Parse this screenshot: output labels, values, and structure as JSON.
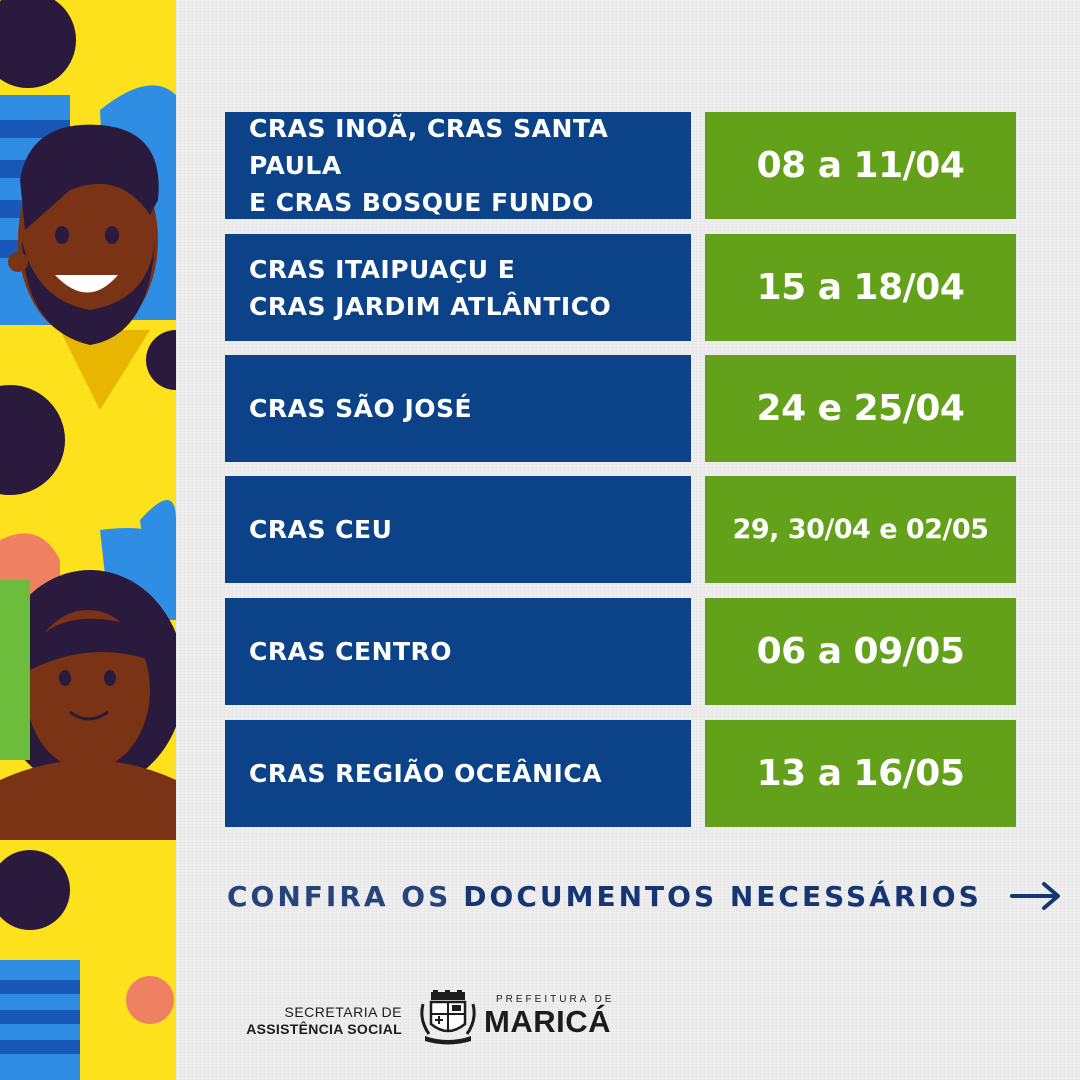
{
  "schedule": [
    {
      "place": "CRAS INOÃ, CRAS SANTA PAULA\nE CRAS BOSQUE FUNDO",
      "date": "08 a 11/04"
    },
    {
      "place": "CRAS ITAIPUAÇU E\nCRAS JARDIM ATLÂNTICO",
      "date": "15 a 18/04"
    },
    {
      "place": "CRAS SÃO JOSÉ",
      "date": "24 e 25/04"
    },
    {
      "place": "CRAS CEU",
      "date": "29, 30/04 e 02/05"
    },
    {
      "place": "CRAS CENTRO",
      "date": "06 a 09/05"
    },
    {
      "place": "CRAS REGIÃO OCEÂNICA",
      "date": "13 a 16/05"
    }
  ],
  "cta": {
    "prefix": "CONFIRA OS",
    "emphasis": "DOCUMENTOS NECESSÁRIOS",
    "icon": "arrow-right-icon"
  },
  "footer": {
    "secretaria_line1": "SECRETARIA DE",
    "secretaria_line2": "ASSISTÊNCIA SOCIAL",
    "prefeitura_line1": "PREFEITURA DE",
    "prefeitura_line2": "MARICÁ",
    "crest_icon": "municipal-crest-icon"
  },
  "colors": {
    "place_bg": "#0b4288",
    "date_bg": "#62a119",
    "cta_text": "#163573",
    "illustration_bg": "#fde11d"
  }
}
